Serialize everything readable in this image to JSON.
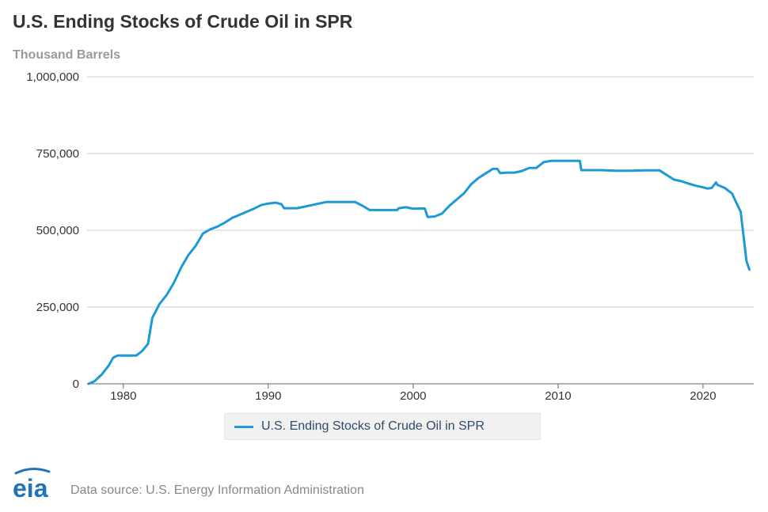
{
  "chart_data": {
    "type": "line",
    "title": "U.S. Ending Stocks of Crude Oil in SPR",
    "subtitle": "Thousand Barrels",
    "xlabel": "",
    "ylabel": "",
    "xlim": [
      1977.5,
      2023.5
    ],
    "ylim": [
      0,
      1000000
    ],
    "yticks": [
      0,
      250000,
      500000,
      750000,
      1000000
    ],
    "ytick_labels": [
      "0",
      "250,000",
      "500,000",
      "750,000",
      "1,000,000"
    ],
    "xticks": [
      1980,
      1990,
      2000,
      2010,
      2020
    ],
    "xtick_labels": [
      "1980",
      "1990",
      "2000",
      "2010",
      "2020"
    ],
    "grid": true,
    "legend_position": "bottom-center",
    "series": [
      {
        "name": "U.S. Ending Stocks of Crude Oil in SPR",
        "color": "#1c9ad6",
        "x": [
          1977.6,
          1978.0,
          1978.5,
          1979.0,
          1979.3,
          1979.6,
          1980.0,
          1980.5,
          1980.9,
          1981.3,
          1981.7,
          1982.0,
          1982.5,
          1983.0,
          1983.5,
          1984.0,
          1984.5,
          1985.0,
          1985.5,
          1986.0,
          1986.5,
          1987.0,
          1987.5,
          1988.0,
          1988.5,
          1989.0,
          1989.5,
          1990.0,
          1990.5,
          1990.9,
          1991.1,
          1992.0,
          1993.0,
          1994.0,
          1995.0,
          1996.0,
          1996.5,
          1997.0,
          1998.0,
          1998.9,
          1999.0,
          1999.5,
          2000.0,
          2000.5,
          2000.8,
          2001.0,
          2001.5,
          2002.0,
          2002.5,
          2003.0,
          2003.5,
          2004.0,
          2004.5,
          2005.0,
          2005.5,
          2005.8,
          2006.0,
          2006.5,
          2007.0,
          2007.5,
          2008.0,
          2008.5,
          2009.0,
          2009.5,
          2010.0,
          2011.0,
          2011.5,
          2011.6,
          2012.0,
          2013.0,
          2014.0,
          2015.0,
          2016.0,
          2017.0,
          2017.5,
          2018.0,
          2018.5,
          2019.0,
          2019.5,
          2020.0,
          2020.3,
          2020.6,
          2020.9,
          2021.0,
          2021.5,
          2022.0,
          2022.3,
          2022.6,
          2022.8,
          2023.0,
          2023.2
        ],
        "y": [
          0,
          8000,
          30000,
          60000,
          85000,
          92000,
          92000,
          92000,
          92000,
          107000,
          130000,
          215000,
          260000,
          290000,
          330000,
          380000,
          420000,
          450000,
          490000,
          503000,
          512000,
          525000,
          540000,
          550000,
          560000,
          570000,
          582000,
          587000,
          590000,
          585000,
          572000,
          572000,
          582000,
          592000,
          592000,
          592000,
          580000,
          566000,
          566000,
          566000,
          572000,
          575000,
          570000,
          571000,
          571000,
          543000,
          545000,
          555000,
          580000,
          600000,
          620000,
          650000,
          670000,
          685000,
          700000,
          700000,
          686000,
          688000,
          688000,
          693000,
          703000,
          703000,
          722000,
          726000,
          726000,
          726000,
          726000,
          696000,
          696000,
          696000,
          694000,
          694000,
          695000,
          695000,
          680000,
          665000,
          660000,
          652000,
          645000,
          640000,
          636000,
          638000,
          656000,
          648000,
          638000,
          620000,
          590000,
          560000,
          480000,
          400000,
          372000
        ]
      }
    ]
  },
  "source": "Data source: U.S. Energy Information Administration",
  "logo_text": "eia",
  "colors": {
    "line": "#1c9ad6",
    "grid": "#cccccc",
    "axis": "#666666",
    "logo": "#1f74b7"
  }
}
